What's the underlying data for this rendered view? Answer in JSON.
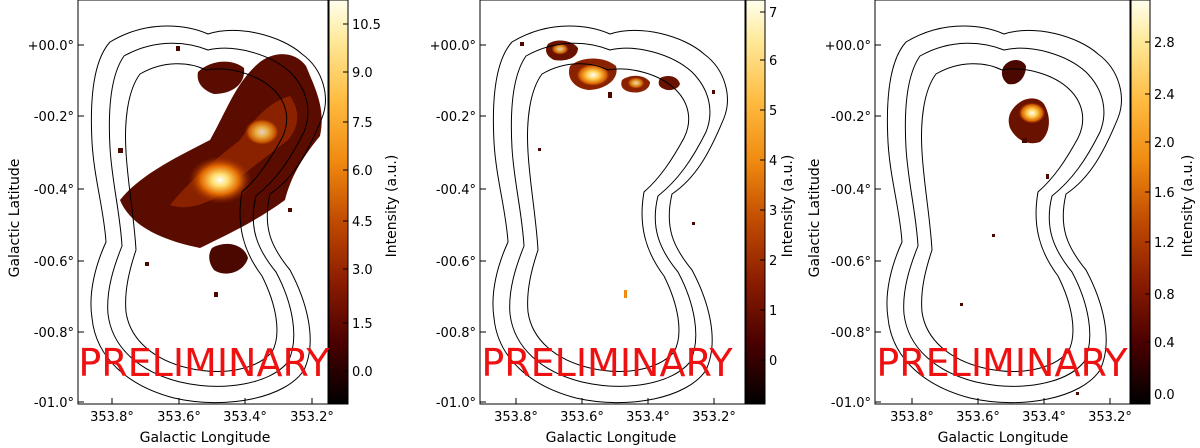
{
  "figure": {
    "watermark": "PRELIMINARY",
    "xlabel": "Galactic Longitude",
    "ylabel": "Galactic Latitude",
    "cbar_label": "Intensity (a.u.)",
    "x_ticks": [
      "353.8°",
      "353.6°",
      "353.4°",
      "353.2°"
    ],
    "y_ticks": [
      "+00.0°",
      "-00.2°",
      "-00.4°",
      "-00.6°",
      "-00.8°",
      "-01.0°"
    ]
  },
  "chart_data": [
    {
      "type": "heatmap",
      "colormap": "afmhot",
      "xlabel": "Galactic Longitude",
      "ylabel": "Galactic Latitude",
      "cbar_label": "Intensity (a.u.)",
      "x_ticks": [
        353.8,
        353.6,
        353.4,
        353.2
      ],
      "y_ticks": [
        0.0,
        -0.2,
        -0.4,
        -0.6,
        -0.8,
        -1.0
      ],
      "cbar_ticks": [
        "0.0",
        "1.5",
        "3.0",
        "4.5",
        "6.0",
        "7.5",
        "9.0",
        "10.5"
      ],
      "cbar_range": [
        -0.8,
        11.6
      ],
      "peak": {
        "l": 353.41,
        "b": -0.37,
        "value": 11.0
      }
    },
    {
      "type": "heatmap",
      "colormap": "afmhot",
      "xlabel": "Galactic Longitude",
      "ylabel": "Galactic Latitude",
      "cbar_label": "Intensity (a.u.)",
      "x_ticks": [
        353.8,
        353.6,
        353.4,
        353.2
      ],
      "y_ticks": [
        0.0,
        -0.2,
        -0.4,
        -0.6,
        -0.8,
        -1.0
      ],
      "cbar_ticks": [
        "0",
        "1",
        "2",
        "3",
        "4",
        "5",
        "6",
        "7"
      ],
      "cbar_range": [
        -0.6,
        7.3
      ],
      "peak": {
        "l": 353.57,
        "b": -0.04,
        "value": 7.0
      }
    },
    {
      "type": "heatmap",
      "colormap": "afmhot",
      "xlabel": "Galactic Longitude",
      "ylabel": "Galactic Latitude",
      "cbar_label": "Intensity (a.u.)",
      "cbar_ticks": [
        "0.0",
        "0.4",
        "0.8",
        "1.2",
        "1.6",
        "2.0",
        "2.4",
        "2.8"
      ],
      "x_ticks": [
        353.8,
        353.6,
        353.4,
        353.2
      ],
      "y_ticks": [
        0.0,
        -0.2,
        -0.4,
        -0.6,
        -0.8,
        -1.0
      ],
      "cbar_range": [
        -0.1,
        3.1
      ],
      "peak": {
        "l": 353.36,
        "b": -0.17,
        "value": 3.0
      }
    }
  ]
}
